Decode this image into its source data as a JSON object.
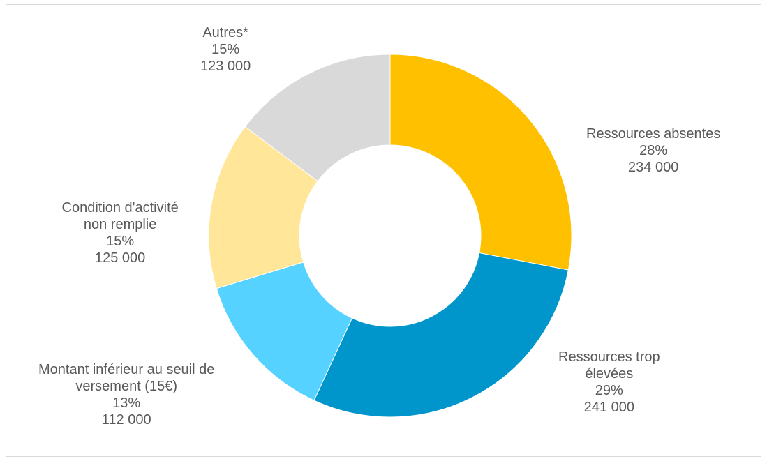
{
  "chart_data": {
    "type": "pie",
    "subtype": "donut",
    "title": "",
    "slices": [
      {
        "name": "Ressources absentes",
        "name_lines": [
          "Ressources absentes"
        ],
        "percent_label": "28%",
        "value_label": "234 000",
        "value": 234000,
        "color": "#FFC000"
      },
      {
        "name": "Ressources trop élevées",
        "name_lines": [
          "Ressources trop",
          "élevées"
        ],
        "percent_label": "29%",
        "value_label": "241 000",
        "value": 241000,
        "color": "#0096CB"
      },
      {
        "name": "Montant inférieur au seuil de versement (15€)",
        "name_lines": [
          "Montant inférieur au seuil de",
          "versement (15€)"
        ],
        "percent_label": "13%",
        "value_label": "112 000",
        "value": 112000,
        "color": "#55D2FF"
      },
      {
        "name": "Condition d'activité non remplie",
        "name_lines": [
          "Condition d'activité",
          "non remplie"
        ],
        "percent_label": "15%",
        "value_label": "125 000",
        "value": 125000,
        "color": "#FFE699"
      },
      {
        "name": "Autres*",
        "name_lines": [
          "Autres*"
        ],
        "percent_label": "15%",
        "value_label": "123 000",
        "value": 123000,
        "color": "#D9D9D9"
      }
    ],
    "legend": "none",
    "start_angle": "12 o'clock",
    "direction": "clockwise"
  }
}
